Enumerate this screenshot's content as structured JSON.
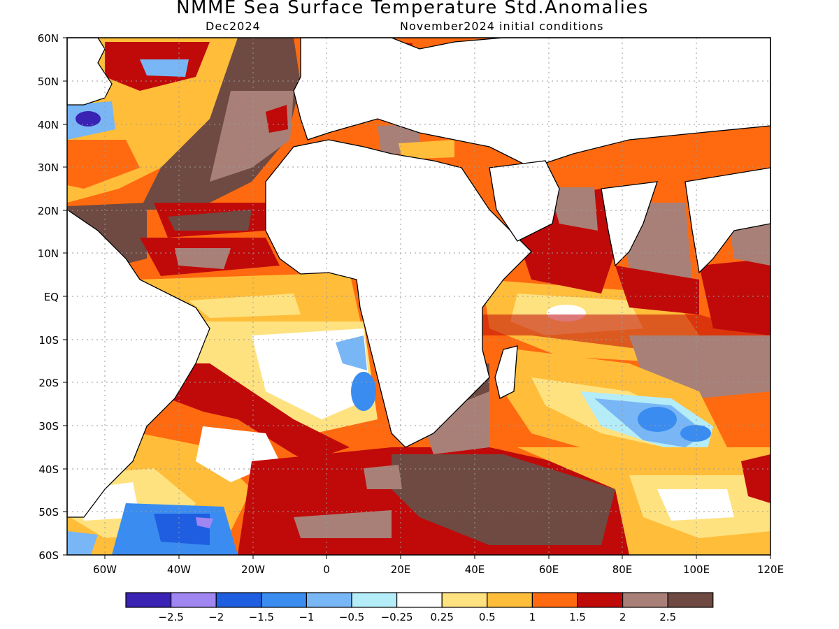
{
  "title": "NMME Sea Surface Temperature Std.Anomalies",
  "subtitle_left": "Dec2024",
  "subtitle_right": "November2024 initial conditions",
  "lat_labels": [
    "60N",
    "50N",
    "40N",
    "30N",
    "20N",
    "10N",
    "EQ",
    "10S",
    "20S",
    "30S",
    "40S",
    "50S",
    "60S"
  ],
  "lon_labels": [
    "60W",
    "40W",
    "20W",
    "0",
    "20E",
    "40E",
    "60E",
    "80E",
    "100E",
    "120E"
  ],
  "colorbar": {
    "colors": [
      "#3a22b4",
      "#9f86f0",
      "#1f5ee0",
      "#3a8cf0",
      "#78b6f5",
      "#b4ecf8",
      "#ffffff",
      "#ffe280",
      "#ffbd3a",
      "#ff6a10",
      "#c00a0a",
      "#a88078",
      "#6e4a42"
    ],
    "labels": [
      "-2.5",
      "-2",
      "-1.5",
      "-1",
      "-0.5",
      "-0.25",
      "0.25",
      "0.5",
      "1",
      "1.5",
      "2",
      "2.5"
    ]
  }
}
